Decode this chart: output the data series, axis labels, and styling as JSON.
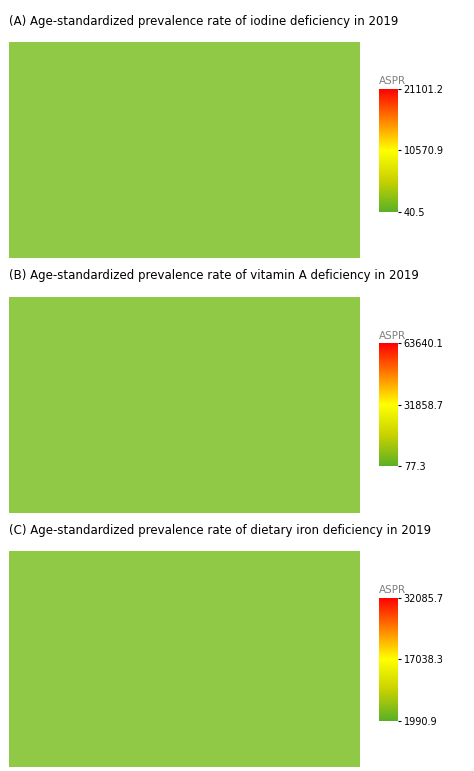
{
  "panels": [
    {
      "label": "(A) Age-standardized prevalence rate of iodine deficiency in 2019",
      "colorbar_label": "ASPR",
      "vmin": 40.5,
      "vmid": 10570.9,
      "vmax": 21101.2,
      "tick_labels": [
        "21101.2",
        "10570.9",
        "40.5"
      ]
    },
    {
      "label": "(B) Age-standardized prevalence rate of vitamin A deficiency in 2019",
      "colorbar_label": "ASPR",
      "vmin": 77.3,
      "vmid": 31858.7,
      "vmax": 63640.1,
      "tick_labels": [
        "63640.1",
        "31858.7",
        "77.3"
      ]
    },
    {
      "label": "(C) Age-standardized prevalence rate of dietary iron deficiency in 2019",
      "colorbar_label": "ASPR",
      "vmin": 1990.9,
      "vmid": 17038.3,
      "vmax": 32085.7,
      "tick_labels": [
        "32085.7",
        "17038.3",
        "1990.9"
      ]
    }
  ],
  "background_color": "#ffffff",
  "map_base_color": "#90c945",
  "ocean_color": "#ffffff",
  "colormap_colors": [
    "#5ab026",
    "#c8d400",
    "#ffff00",
    "#ffa500",
    "#ff0000"
  ],
  "title_fontsize": 8.5,
  "tick_fontsize": 7,
  "label_fontsize": 7.5
}
